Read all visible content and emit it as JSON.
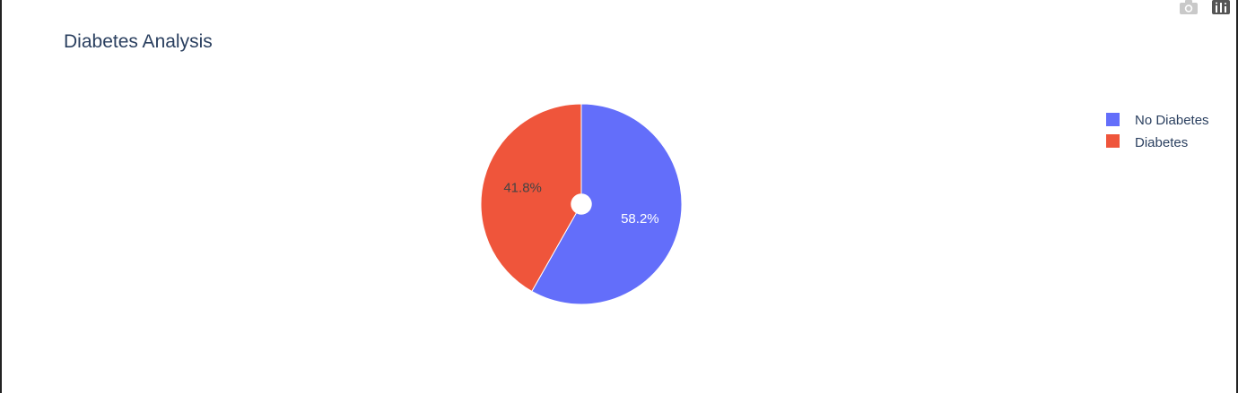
{
  "chart_data": {
    "type": "pie",
    "title": "Diabetes Analysis",
    "hole": 0.1,
    "labels": [
      "No Diabetes",
      "Diabetes"
    ],
    "values": [
      58.2,
      41.8
    ],
    "percent_labels": [
      "58.2%",
      "41.8%"
    ],
    "colors": [
      "#636efa",
      "#ef553b"
    ],
    "text_colors": [
      "#ffffff",
      "#444444"
    ],
    "legend_position": "top-right",
    "direction": "clockwise",
    "rotation_start": "12 o'clock"
  },
  "modebar": {
    "icons": [
      "camera-icon",
      "plotly-logo-icon"
    ]
  }
}
